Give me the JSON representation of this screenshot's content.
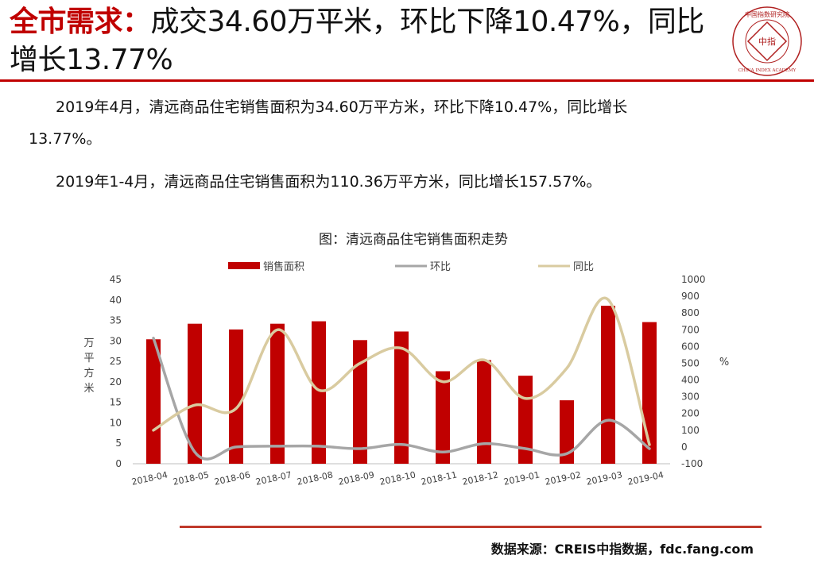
{
  "header": {
    "title_keyword": "全市需求：",
    "title_text": "成交34.60万平米，环比下降10.47%，同比增长13.77%",
    "logo_center_text": "中指",
    "logo_ring_text": "中国指数研究院",
    "logo_english_text": "CHINA INDEX ACADEMY"
  },
  "body": {
    "para1_line1": "2019年4月，清远商品住宅销售面积为34.60万平方米，环比下降10.47%，同比增长",
    "para1_line2": "13.77%。",
    "para2": "2019年1-4月，清远商品住宅销售面积为110.36万平方米，同比增长157.57%。"
  },
  "chart_title": "图：清远商品住宅销售面积走势",
  "chart_data": {
    "type": "bar",
    "categories": [
      "2018-04",
      "2018-05",
      "2018-06",
      "2018-07",
      "2018-08",
      "2018-09",
      "2018-10",
      "2018-11",
      "2018-12",
      "2019-01",
      "2019-02",
      "2019-03",
      "2019-04"
    ],
    "series": [
      {
        "name": "销售面积",
        "type": "bar",
        "axis": "left",
        "color": "#c00000",
        "values": [
          30.4,
          34.2,
          32.8,
          34.2,
          34.8,
          30.2,
          32.3,
          22.6,
          25.3,
          21.5,
          15.5,
          38.6,
          34.6
        ]
      },
      {
        "name": "环比",
        "type": "line",
        "axis": "right",
        "color": "#a6a6a6",
        "values": [
          650,
          -30,
          0,
          5,
          5,
          -10,
          15,
          -30,
          20,
          -10,
          -40,
          160,
          -10
        ]
      },
      {
        "name": "同比",
        "type": "line",
        "axis": "right",
        "color": "#d9cba0",
        "values": [
          100,
          250,
          230,
          700,
          340,
          500,
          590,
          390,
          520,
          290,
          470,
          880,
          14
        ]
      }
    ],
    "ylabel_left": "万平方米",
    "ylabel_right": "%",
    "ylim_left": [
      0,
      45
    ],
    "yticks_left": [
      0,
      5,
      10,
      15,
      20,
      25,
      30,
      35,
      40,
      45
    ],
    "ylim_right": [
      -100,
      1000
    ],
    "yticks_right": [
      -100,
      0,
      100,
      200,
      300,
      400,
      500,
      600,
      700,
      800,
      900,
      1000
    ],
    "grid": false,
    "legend_position": "top"
  },
  "footer": {
    "source": "数据来源：CREIS中指数据，fdc.fang.com"
  }
}
